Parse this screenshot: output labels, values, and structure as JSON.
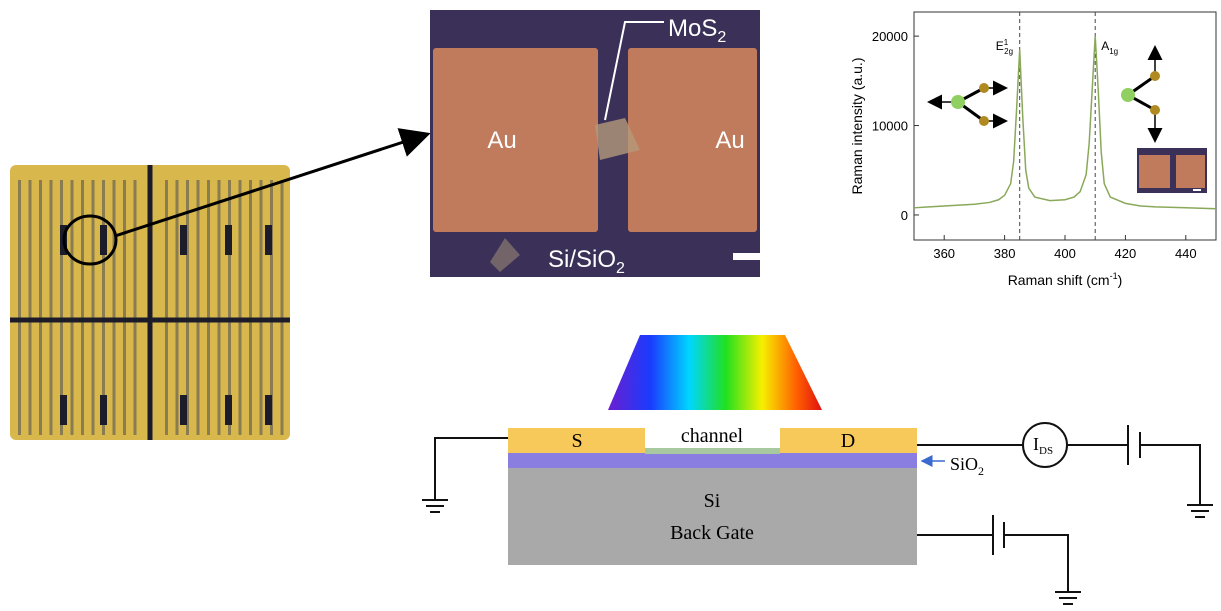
{
  "chart_data": {
    "type": "line",
    "y_label": "Raman intensity (a.u.)",
    "x_label": {
      "text": "Raman shift (cm",
      "sup": "-1",
      "tail": ")"
    },
    "xlim": [
      350,
      450
    ],
    "xticks": [
      360,
      380,
      400,
      420,
      440
    ],
    "ylim": [
      -2800,
      22700
    ],
    "yticks": [
      0,
      10000,
      20000
    ],
    "peak_lines": [
      385,
      410
    ],
    "peak_labels": [
      {
        "text": "E",
        "sub": "2g",
        "sup": "1"
      },
      {
        "text": "A",
        "sub": "1g"
      }
    ],
    "series": [
      {
        "color": "#8aa85a",
        "x": [
          350,
          355,
          360,
          365,
          370,
          375,
          378,
          380,
          382,
          383,
          384,
          385,
          386,
          387,
          388,
          390,
          395,
          400,
          403,
          405,
          407,
          408,
          409,
          410,
          411,
          412,
          413,
          415,
          420,
          425,
          430,
          440,
          450
        ],
        "values": [
          800,
          900,
          1000,
          1100,
          1200,
          1400,
          1700,
          2200,
          3500,
          6000,
          12000,
          18500,
          11000,
          5000,
          3000,
          2000,
          1600,
          1700,
          2000,
          2600,
          4500,
          8000,
          14000,
          20000,
          14000,
          7000,
          3500,
          2000,
          1300,
          1000,
          900,
          800,
          700
        ]
      }
    ]
  },
  "micrograph": {
    "flake": {
      "text": "MoS",
      "sub": "2"
    },
    "left_pad": "Au",
    "right_pad": "Au",
    "substrate": {
      "text": "Si/SiO",
      "sub": "2"
    }
  },
  "schematic": {
    "source": "S",
    "channel": "channel",
    "drain": "D",
    "oxide": {
      "text": "SiO",
      "sub": "2"
    },
    "gate_1": "Si",
    "gate_2": "Back Gate",
    "meter": {
      "text": "I",
      "sub": "DS"
    }
  }
}
